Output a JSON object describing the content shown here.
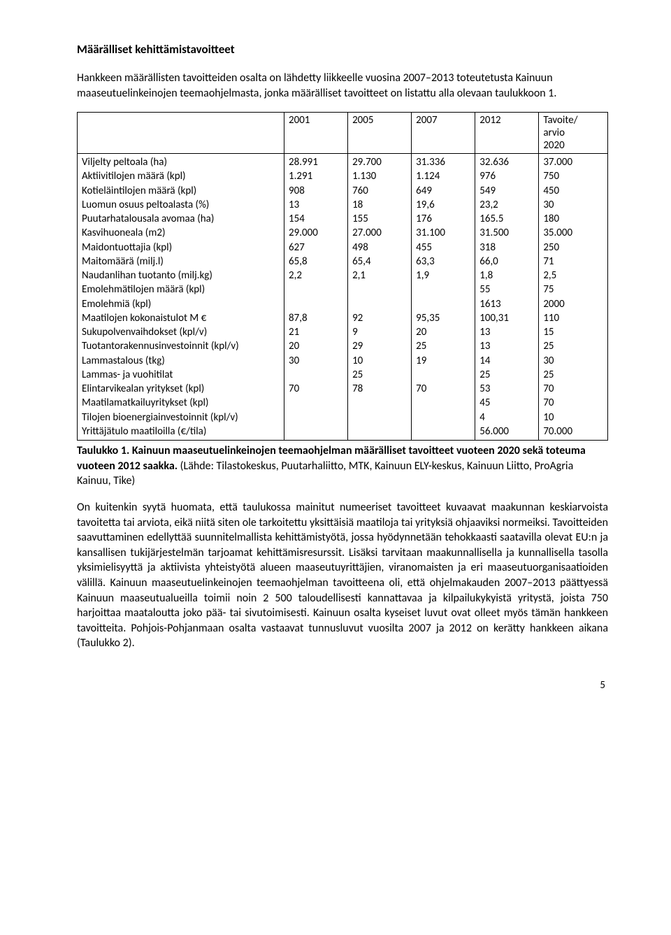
{
  "heading": "Määrälliset kehittämistavoitteet",
  "intro": "Hankkeen määrällisten tavoitteiden osalta on lähdetty liikkeelle vuosina 2007–2013 toteutetusta Kainuun maaseutuelinkeinojen teemaohjelmasta, jonka määrälliset tavoitteet on listattu alla olevaan taulukkoon 1.",
  "table": {
    "headers": [
      "",
      "2001",
      "2005",
      "2007",
      "2012",
      "Tavoite/\narvio\n2020"
    ],
    "rows": [
      [
        "Viljelty peltoala (ha)",
        "28.991",
        "29.700",
        "31.336",
        "32.636",
        "37.000"
      ],
      [
        "Aktiivitilojen määrä (kpl)",
        "1.291",
        "1.130",
        "1.124",
        "976",
        "750"
      ],
      [
        "Kotieläintilojen määrä (kpl)",
        "908",
        "760",
        "649",
        "549",
        "450"
      ],
      [
        "Luomun osuus peltoalasta (%)",
        "13",
        "18",
        "19,6",
        "23,2",
        "30"
      ],
      [
        "Puutarhatalousala avomaa (ha)",
        "154",
        "155",
        "176",
        "165.5",
        "180"
      ],
      [
        "Kasvihuoneala (m2)",
        "29.000",
        "27.000",
        "31.100",
        "31.500",
        "35.000"
      ],
      [
        "Maidontuottajia (kpl)",
        "627",
        "498",
        "455",
        "318",
        "250"
      ],
      [
        "Maitomäärä (milj.l)",
        "65,8",
        "65,4",
        "63,3",
        "66,0",
        "71"
      ],
      [
        "Naudanlihan tuotanto (milj.kg)",
        "2,2",
        "2,1",
        "1,9",
        "1,8",
        "2,5"
      ],
      [
        "Emolehmätilojen määrä (kpl)",
        "",
        "",
        "",
        "55",
        "75"
      ],
      [
        "Emolehmiä (kpl)",
        "",
        "",
        "",
        "1613",
        "2000"
      ],
      [
        "Maatilojen kokonaistulot M €",
        "87,8",
        "92",
        "95,35",
        "100,31",
        "110"
      ],
      [
        "Sukupolvenvaihdokset (kpl/v)",
        "21",
        "9",
        "20",
        "13",
        "15"
      ],
      [
        "Tuotantorakennusinvestoinnit (kpl/v)",
        "20",
        "29",
        "25",
        "13",
        "25"
      ],
      [
        "Lammastalous (tkg)",
        "30",
        "10",
        "19",
        "14",
        "30"
      ],
      [
        "Lammas- ja vuohitilat",
        "",
        "25",
        "",
        "25",
        "25"
      ],
      [
        "Elintarvikealan yritykset (kpl)",
        "70",
        "78",
        "70",
        "53",
        "70"
      ],
      [
        "Maatilamatkailuyritykset (kpl)",
        "",
        "",
        "",
        "45",
        "70"
      ],
      [
        "Tilojen bioenergiainvestoinnit (kpl/v)",
        "",
        "",
        "",
        "4",
        "10"
      ],
      [
        "Yrittäjätulo maatiloilla (€/tila)",
        "",
        "",
        "",
        "56.000",
        "70.000"
      ]
    ]
  },
  "caption_bold": "Taulukko 1. Kainuun maaseutuelinkeinojen teemaohjelman määrälliset tavoitteet vuoteen 2020 sekä toteuma vuoteen 2012 saakka.",
  "caption_rest": " (Lähde: Tilastokeskus, Puutarhaliitto, MTK, Kainuun ELY-keskus, Kainuun Liitto, ProAgria Kainuu, Tike)",
  "body1": "On kuitenkin syytä huomata, että taulukossa mainitut numeeriset tavoitteet kuvaavat maakunnan keskiarvoista tavoitetta tai arviota, eikä niitä siten ole tarkoitettu yksittäisiä maatiloja tai yrityksiä ohjaaviksi normeiksi. Tavoitteiden saavuttaminen edellyttää suunnitelmallista kehittämistyötä, jossa hyödynnetään tehokkaasti saatavilla olevat EU:n ja kansallisen tukijärjestelmän tarjoamat kehittämisresurssit. Lisäksi tarvitaan maakunnallisella ja kunnallisella tasolla yksimielisyyttä ja aktiivista yhteistyötä alueen maaseutuyrittäjien, viranomaisten ja eri maaseutuorganisaatioiden välillä. Kainuun maaseutuelinkeinojen teemaohjelman tavoitteena oli, että ohjelmakauden 2007–2013 päättyessä Kainuun maaseutualueilla toimii noin 2 500 taloudellisesti kannattavaa ja kilpailukykyistä yritystä, joista 750 harjoittaa maataloutta joko pää- tai sivutoimisesti. Kainuun osalta kyseiset luvut ovat olleet myös tämän hankkeen tavoitteita. Pohjois-Pohjanmaan osalta vastaavat tunnusluvut vuosilta 2007 ja 2012 on kerätty hankkeen aikana (Taulukko 2).",
  "page_number": "5",
  "colors": {
    "text": "#000000",
    "border": "#000000",
    "background": "#ffffff"
  },
  "fontsizes": {
    "heading": 17,
    "body": 16,
    "table": 15
  }
}
